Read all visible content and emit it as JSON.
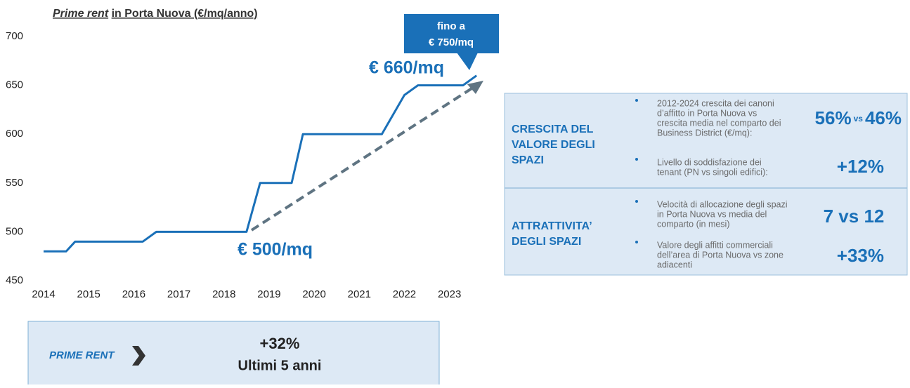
{
  "chart_data": {
    "type": "line",
    "title": [
      "Prime rent",
      "in Porta Nuova (€/mq/anno)"
    ],
    "x": [
      2014,
      2014.5,
      2014.7,
      2016.2,
      2016.5,
      2018.5,
      2018.8,
      2019.5,
      2019.75,
      2021.5,
      2022,
      2022.3,
      2023.3,
      2023.6
    ],
    "values": [
      480,
      480,
      490,
      490,
      500,
      500,
      550,
      550,
      600,
      600,
      640,
      650,
      650,
      660
    ],
    "color": "#1a70b8",
    "xlim": [
      2013.75,
      2023.8
    ],
    "xticks": [
      2014,
      2015,
      2016,
      2017,
      2018,
      2019,
      2020,
      2021,
      2022,
      2023
    ],
    "ylim": [
      450,
      700
    ],
    "yticks": [
      450,
      500,
      550,
      600,
      650,
      700
    ],
    "grid": false,
    "annotations": [
      "€ 660/mq",
      "€ 500/mq"
    ],
    "callout": [
      "fino a",
      "€ 750/mq"
    ]
  },
  "panel": {
    "sections": [
      {
        "heading": [
          "CRESCITA DEL",
          "VALORE DEGLI",
          "SPAZI"
        ],
        "items": [
          {
            "text": [
              "2012-2024 crescita dei canoni",
              "d’affitto in Porta Nuova vs",
              "crescita media nel comparto dei",
              "Business District (€/mq):"
            ],
            "figure": [
              "56%",
              "vs",
              "46%"
            ]
          },
          {
            "text": [
              "Livello di soddisfazione dei",
              "tenant (PN vs singoli edifici):"
            ],
            "figure": [
              "+12%"
            ]
          }
        ]
      },
      {
        "heading": [
          "ATTRATTIVITA’",
          "DEGLI SPAZI"
        ],
        "items": [
          {
            "text": [
              "Velocità di allocazione degli spazi",
              "in Porta Nuova vs media del",
              "comparto (in mesi)"
            ],
            "figure": [
              "7 vs 12"
            ]
          },
          {
            "text": [
              "Valore degli affitti commerciali",
              "dell’area di Porta Nuova vs zone",
              "adiacenti"
            ],
            "figure": [
              "+33%"
            ]
          }
        ]
      }
    ]
  },
  "summary": {
    "label": "PRIME RENT",
    "value": "+32%",
    "caption": "Ultimi 5 anni"
  }
}
